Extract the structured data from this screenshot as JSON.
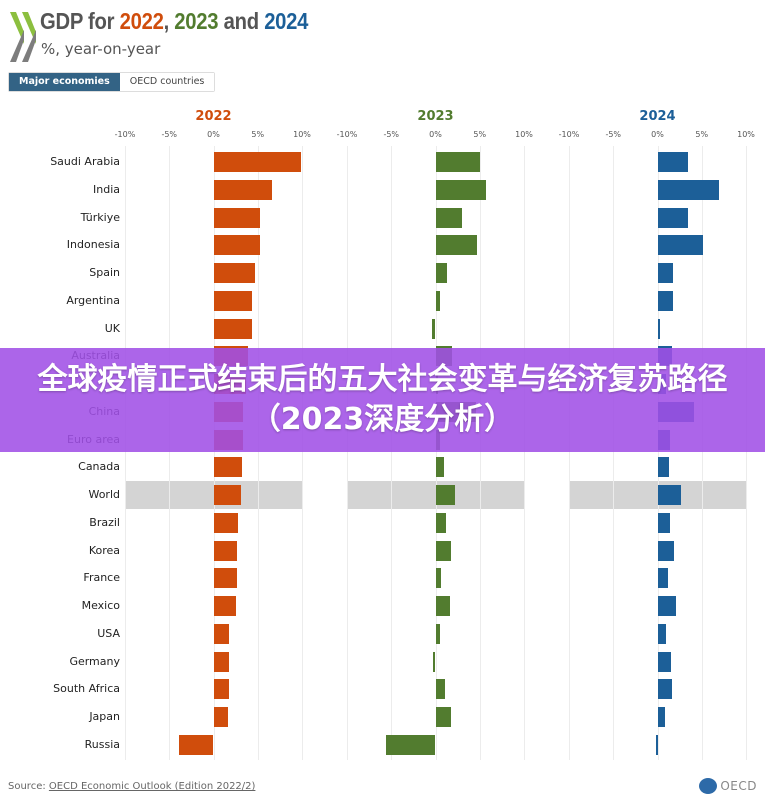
{
  "header": {
    "title_prefix": "GDP for ",
    "year1": "2022",
    "sep1": ", ",
    "year2": "2023",
    "sep2": " and ",
    "year3": "2024",
    "subtitle": "%, year-on-year"
  },
  "tabs": [
    {
      "label": "Major economies",
      "active": true
    },
    {
      "label": "OECD countries",
      "active": false
    }
  ],
  "overlay": {
    "text": "全球疫情正式结束后的五大社会变革与经济复苏路径（2023深度分析）",
    "color": "#a050e6"
  },
  "footer": {
    "source_prefix": "Source: ",
    "source_link": "OECD Economic Outlook (Edition 2022/2)",
    "logo_text": "OECD"
  },
  "colors": {
    "2022": "#d04d0c",
    "2023": "#527c2f",
    "2024": "#1c5f98",
    "highlight": "#d4d4d4"
  },
  "chart_data": {
    "type": "bar",
    "orientation": "horizontal",
    "title": "GDP for 2022, 2023 and 2024",
    "subtitle": "%, year-on-year",
    "panels": [
      "2022",
      "2023",
      "2024"
    ],
    "x_ticks": [
      "-10%",
      "-5%",
      "0%",
      "5%",
      "10%"
    ],
    "xlim": [
      -10,
      10
    ],
    "grid": true,
    "highlighted_category": "World",
    "categories": [
      "Saudi Arabia",
      "India",
      "Türkiye",
      "Indonesia",
      "Spain",
      "Argentina",
      "UK",
      "Australia",
      "",
      "China",
      "Euro area",
      "Canada",
      "World",
      "Brazil",
      "Korea",
      "France",
      "Mexico",
      "USA",
      "Germany",
      "South Africa",
      "Japan",
      "Russia"
    ],
    "series": [
      {
        "name": "2022",
        "values": [
          9.9,
          6.6,
          5.3,
          5.3,
          4.7,
          4.4,
          4.4,
          3.9,
          3.7,
          3.3,
          3.3,
          3.2,
          3.1,
          2.8,
          2.7,
          2.6,
          2.5,
          1.8,
          1.8,
          1.7,
          1.6,
          -3.9
        ]
      },
      {
        "name": "2023",
        "values": [
          5.0,
          5.7,
          3.0,
          4.7,
          1.3,
          0.5,
          -0.4,
          1.9,
          0.2,
          4.6,
          0.5,
          1.0,
          2.2,
          1.2,
          1.8,
          0.6,
          1.6,
          0.5,
          -0.3,
          1.1,
          1.8,
          -5.6
        ]
      },
      {
        "name": "2024",
        "values": [
          3.5,
          6.9,
          3.4,
          5.1,
          1.7,
          1.8,
          0.2,
          1.6,
          1.0,
          4.1,
          1.4,
          1.3,
          2.7,
          1.4,
          1.9,
          1.2,
          2.1,
          1.0,
          1.5,
          1.6,
          0.9,
          -0.2
        ]
      }
    ]
  }
}
